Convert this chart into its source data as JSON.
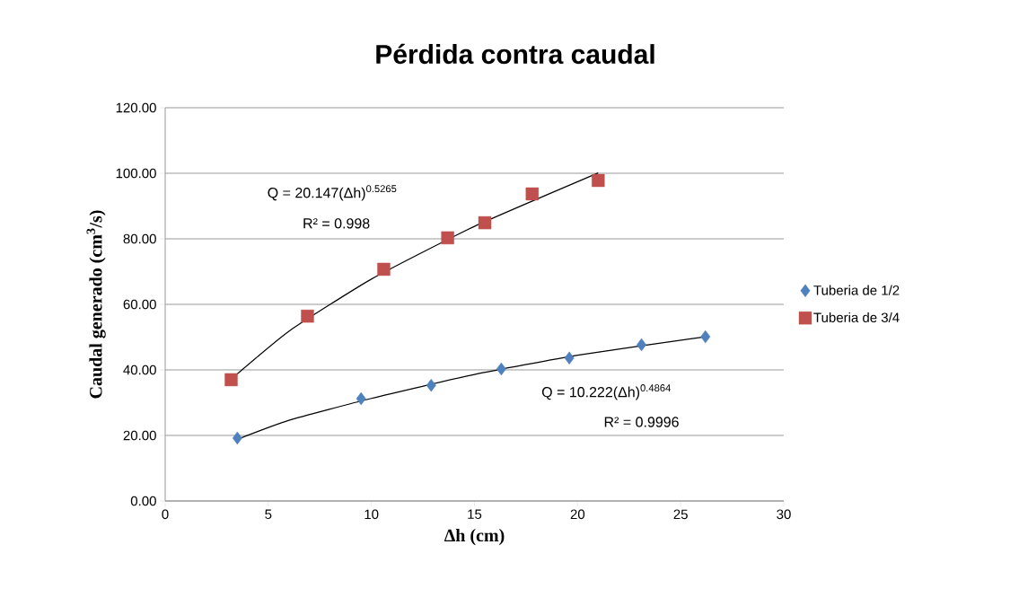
{
  "chart_data": {
    "type": "scatter",
    "title": "Pérdida contra caudal",
    "xlabel": "Δh (cm)",
    "ylabel": "Caudal generado (cm$^{3}$/s)",
    "xlim": [
      0,
      30
    ],
    "xticks": [
      0,
      5,
      10,
      15,
      20,
      25,
      30
    ],
    "ylim": [
      0,
      120
    ],
    "yticks": [
      {
        "value": 0,
        "label": "0.00"
      },
      {
        "value": 20,
        "label": "20.00"
      },
      {
        "value": 40,
        "label": "40.00"
      },
      {
        "value": 60,
        "label": "60.00"
      },
      {
        "value": 80,
        "label": "80.00"
      },
      {
        "value": 100,
        "label": "100.00"
      },
      {
        "value": 120,
        "label": "120.00"
      }
    ],
    "grid": "y",
    "legend": "right",
    "series": [
      {
        "name": "Tuberia de 1/2",
        "marker": "diamond",
        "color": "#4f81bd",
        "x": [
          3.5,
          9.5,
          12.9,
          16.3,
          19.6,
          23.1,
          26.2
        ],
        "values": [
          19.2,
          31.2,
          35.3,
          40.3,
          43.6,
          47.7,
          50.1
        ]
      },
      {
        "name": "Tuberia de 3/4",
        "marker": "square",
        "color": "#c0504d",
        "x": [
          3.2,
          6.9,
          10.6,
          13.7,
          15.5,
          17.8,
          21.0
        ],
        "values": [
          37.0,
          56.4,
          70.7,
          80.3,
          84.9,
          93.7,
          97.8
        ]
      },
      {
        "type": "line",
        "marker": "none",
        "line_style": "solid",
        "color": "#000000",
        "x": [
          3.5,
          6,
          10,
          15,
          20,
          26.2
        ],
        "values": [
          18.8,
          24.6,
          31.3,
          38.6,
          44.5,
          50.1
        ]
      },
      {
        "type": "line",
        "marker": "none",
        "line_style": "solid",
        "color": "#000000",
        "x": [
          3.2,
          6,
          10,
          15,
          21
        ],
        "values": [
          37.2,
          51.8,
          67.7,
          83.8,
          100.1
        ]
      }
    ],
    "annotations": [
      "Q = 20.147(Δh)$^{0.5265}$",
      "R² = 0.998",
      "Q = 10.222(Δh)$^{0.4864}$",
      "R² = 0.9996"
    ]
  }
}
